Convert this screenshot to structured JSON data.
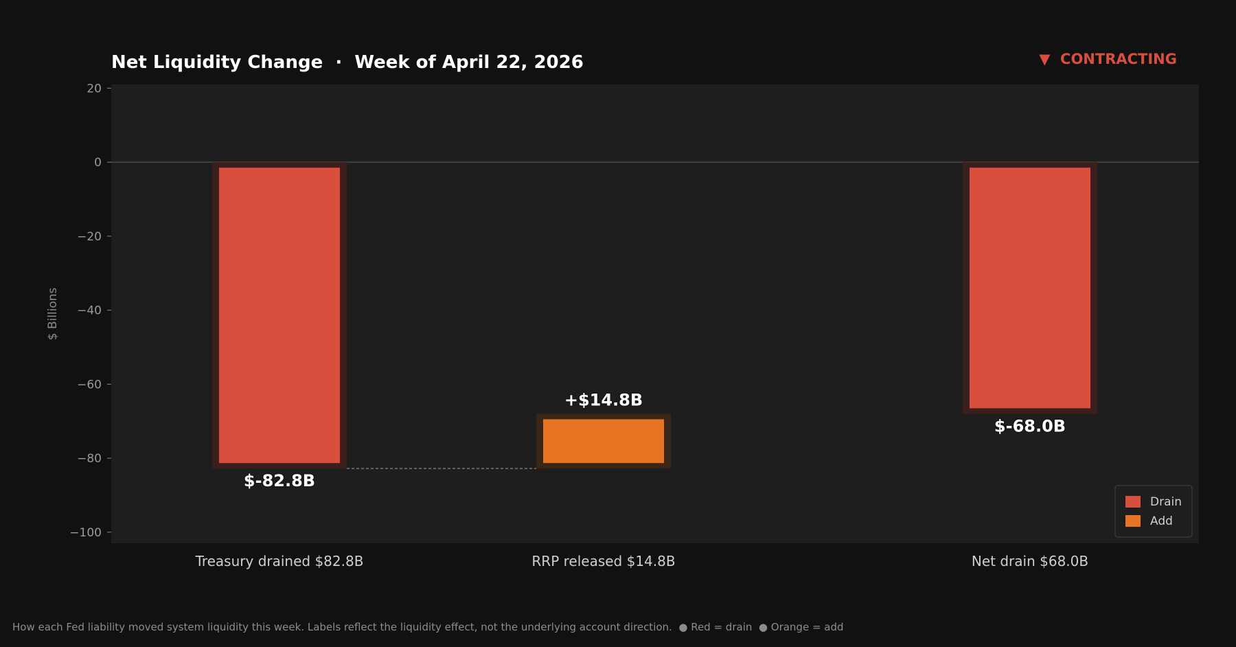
{
  "title": "Net Liquidity Change  ·  Week of April 22, 2026",
  "status": {
    "label": "▼  CONTRACTING",
    "color": "#d94f3e"
  },
  "footer": "How each Fed liability moved system liquidity this week. Labels reflect the liquidity effect, not the underlying account direction.  ● Red = drain  ● Orange = add",
  "colors": {
    "drain": "#d94f3e",
    "add": "#e67422",
    "plot_bg": "#1e1e1e",
    "page_bg": "#111111"
  },
  "chart_data": {
    "type": "waterfall",
    "title": "Net Liquidity Change  ·  Week of April 22, 2026",
    "ylabel": "$ Billions",
    "xlabel": "",
    "ylim": [
      -103,
      21
    ],
    "yticks": [
      20,
      0,
      -20,
      -40,
      -60,
      -80,
      -100
    ],
    "yticklabels": [
      "20",
      "0",
      "−20",
      "−40",
      "−60",
      "−80",
      "−100"
    ],
    "categories": [
      "Treasury drained $82.8B",
      "RRP released $14.8B",
      "Net drain $68.0B"
    ],
    "bars": [
      {
        "category": "Treasury drained $82.8B",
        "start": 0,
        "end": -82.8,
        "kind": "drain",
        "label": "$-82.8B"
      },
      {
        "category": "RRP released $14.8B",
        "start": -82.8,
        "end": -68.0,
        "kind": "add",
        "label": "+$14.8B"
      },
      {
        "category": "Net drain $68.0B",
        "start": 0,
        "end": -68.0,
        "kind": "drain",
        "label": "$-68.0B"
      }
    ],
    "connector": {
      "from": 0,
      "to": 1,
      "value": -82.8
    },
    "legend": [
      {
        "name": "Drain",
        "kind": "drain"
      },
      {
        "name": "Add",
        "kind": "add"
      }
    ],
    "legend_position": "bottom-right",
    "grid": false
  }
}
